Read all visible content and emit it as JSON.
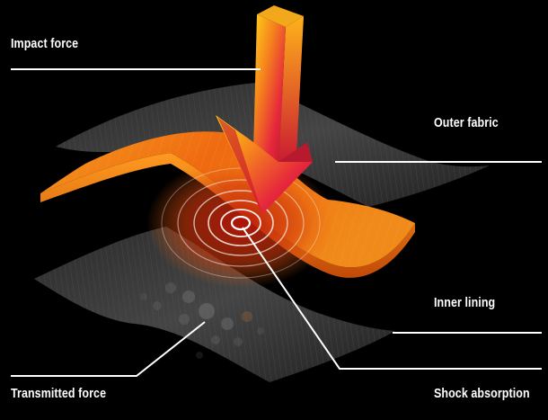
{
  "labels": {
    "impact_force": "Impact force",
    "outer_fabric": "Outer fabric",
    "inner_lining": "Inner lining",
    "transmitted_force": "Transmitted force",
    "shock_absorption": "Shock absorption"
  },
  "colors": {
    "background": "#000000",
    "fabric_layers": "#3a3a3a",
    "foam_layer": "#f07a10",
    "arrow": "#e8283a",
    "leader_lines": "#ffffff"
  }
}
